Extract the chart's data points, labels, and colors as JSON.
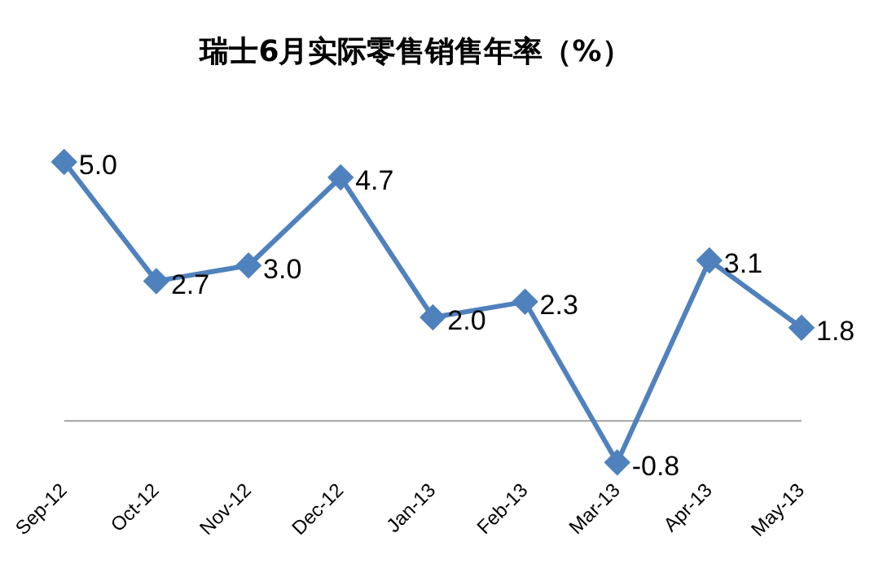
{
  "chart_data": {
    "type": "line",
    "title": "瑞士6月实际零售销售年率（%）",
    "categories": [
      "Sep-12",
      "Oct-12",
      "Nov-12",
      "Dec-12",
      "Jan-13",
      "Feb-13",
      "Mar-13",
      "Apr-13",
      "May-13"
    ],
    "series": [
      {
        "color": "#4f81bd",
        "values": [
          5.0,
          2.7,
          3.0,
          4.7,
          2.0,
          2.3,
          -0.8,
          3.1,
          1.8
        ],
        "value_labels": [
          "5.0",
          "2.7",
          "3.0",
          "4.7",
          "2.0",
          "2.3",
          "-0.8",
          "3.1",
          "1.8"
        ]
      }
    ],
    "marker": "diamond",
    "line_style": "solid",
    "grid": false,
    "legend": false,
    "tick_labels": "x"
  }
}
